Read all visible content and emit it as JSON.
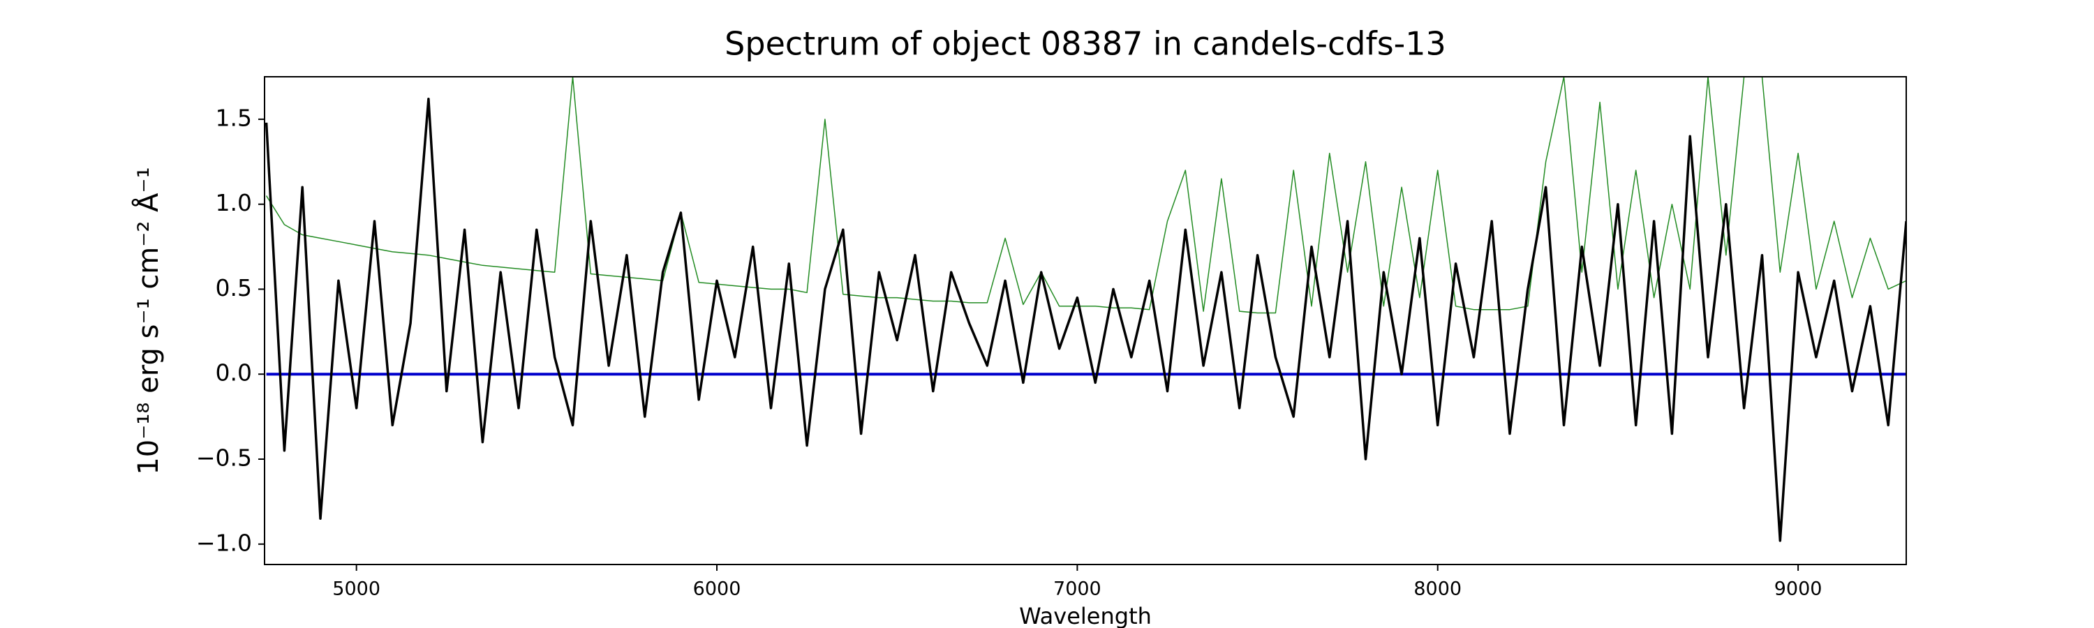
{
  "chart_data": {
    "type": "line",
    "title": "Spectrum of object 08387 in candels-cdfs-13",
    "x_label": "Wavelength",
    "y_label": "10⁻¹⁸ erg s⁻¹ cm⁻² Å⁻¹",
    "x": [
      4750,
      4800,
      4850,
      4900,
      4950,
      5000,
      5050,
      5100,
      5150,
      5200,
      5250,
      5300,
      5350,
      5400,
      5450,
      5500,
      5550,
      5600,
      5650,
      5700,
      5750,
      5800,
      5850,
      5900,
      5950,
      6000,
      6050,
      6100,
      6150,
      6200,
      6250,
      6300,
      6350,
      6400,
      6450,
      6500,
      6550,
      6600,
      6650,
      6700,
      6750,
      6800,
      6850,
      6900,
      6950,
      7000,
      7050,
      7100,
      7150,
      7200,
      7250,
      7300,
      7350,
      7400,
      7450,
      7500,
      7550,
      7600,
      7650,
      7700,
      7750,
      7800,
      7850,
      7900,
      7950,
      8000,
      8050,
      8100,
      8150,
      8200,
      8250,
      8300,
      8350,
      8400,
      8450,
      8500,
      8550,
      8600,
      8650,
      8700,
      8750,
      8800,
      8850,
      8900,
      8950,
      9000,
      9050,
      9100,
      9150,
      9200,
      9250,
      9300
    ],
    "series": [
      {
        "color": "#228b22",
        "width": 1.5,
        "values": [
          1.05,
          0.88,
          0.82,
          0.8,
          0.78,
          0.76,
          0.74,
          0.72,
          0.71,
          0.7,
          0.68,
          0.66,
          0.64,
          0.63,
          0.62,
          0.61,
          0.6,
          1.75,
          0.59,
          0.58,
          0.57,
          0.56,
          0.55,
          0.95,
          0.54,
          0.53,
          0.52,
          0.51,
          0.5,
          0.5,
          0.48,
          1.5,
          0.47,
          0.46,
          0.45,
          0.45,
          0.44,
          0.43,
          0.43,
          0.42,
          0.42,
          0.8,
          0.41,
          0.6,
          0.4,
          0.4,
          0.4,
          0.39,
          0.39,
          0.38,
          0.9,
          1.2,
          0.37,
          1.15,
          0.37,
          0.36,
          0.36,
          1.2,
          0.4,
          1.3,
          0.6,
          1.25,
          0.4,
          1.1,
          0.45,
          1.2,
          0.4,
          0.38,
          0.38,
          0.38,
          0.4,
          1.25,
          1.75,
          0.6,
          1.6,
          0.5,
          1.2,
          0.45,
          1.0,
          0.5,
          1.75,
          0.7,
          1.75,
          1.75,
          0.6,
          1.3,
          0.5,
          0.9,
          0.45,
          0.8,
          0.5,
          0.55
        ]
      },
      {
        "color": "#0000cc",
        "width": 4,
        "values": [
          0,
          0,
          0,
          0,
          0,
          0,
          0,
          0,
          0,
          0,
          0,
          0,
          0,
          0,
          0,
          0,
          0,
          0,
          0,
          0,
          0,
          0,
          0,
          0,
          0,
          0,
          0,
          0,
          0,
          0,
          0,
          0,
          0,
          0,
          0,
          0,
          0,
          0,
          0,
          0,
          0,
          0,
          0,
          0,
          0,
          0,
          0,
          0,
          0,
          0,
          0,
          0,
          0,
          0,
          0,
          0,
          0,
          0,
          0,
          0,
          0,
          0,
          0,
          0,
          0,
          0,
          0,
          0,
          0,
          0,
          0,
          0,
          0,
          0,
          0,
          0,
          0,
          0,
          0,
          0,
          0,
          0,
          0,
          0,
          0,
          0,
          0,
          0,
          0,
          0,
          0,
          0
        ]
      },
      {
        "color": "#000000",
        "width": 3.5,
        "values": [
          1.48,
          -0.45,
          1.1,
          -0.85,
          0.55,
          -0.2,
          0.9,
          -0.3,
          0.3,
          1.62,
          -0.1,
          0.85,
          -0.4,
          0.6,
          -0.2,
          0.85,
          0.1,
          -0.3,
          0.9,
          0.05,
          0.7,
          -0.25,
          0.6,
          0.95,
          -0.15,
          0.55,
          0.1,
          0.75,
          -0.2,
          0.65,
          -0.42,
          0.5,
          0.85,
          -0.35,
          0.6,
          0.2,
          0.7,
          -0.1,
          0.6,
          0.3,
          0.05,
          0.55,
          -0.05,
          0.6,
          0.15,
          0.45,
          -0.05,
          0.5,
          0.1,
          0.55,
          -0.1,
          0.85,
          0.05,
          0.6,
          -0.2,
          0.7,
          0.1,
          -0.25,
          0.75,
          0.1,
          0.9,
          -0.5,
          0.6,
          0.0,
          0.8,
          -0.3,
          0.65,
          0.1,
          0.9,
          -0.35,
          0.5,
          1.1,
          -0.3,
          0.75,
          0.05,
          1.0,
          -0.3,
          0.9,
          -0.35,
          1.4,
          0.1,
          1.0,
          -0.2,
          0.7,
          -0.98,
          0.6,
          0.1,
          0.55,
          -0.1,
          0.4,
          -0.3,
          0.9
        ]
      }
    ],
    "xlim": [
      4745,
      9300
    ],
    "ylim": [
      -1.12,
      1.75
    ],
    "xticks": [
      5000,
      6000,
      7000,
      8000,
      9000
    ],
    "yticks": [
      {
        "value": -1.0,
        "label": "−1.0"
      },
      {
        "value": -0.5,
        "label": "−0.5"
      },
      {
        "value": 0.0,
        "label": "0.0"
      },
      {
        "value": 0.5,
        "label": "0.5"
      },
      {
        "value": 1.0,
        "label": "1.0"
      },
      {
        "value": 1.5,
        "label": "1.5"
      }
    ]
  }
}
